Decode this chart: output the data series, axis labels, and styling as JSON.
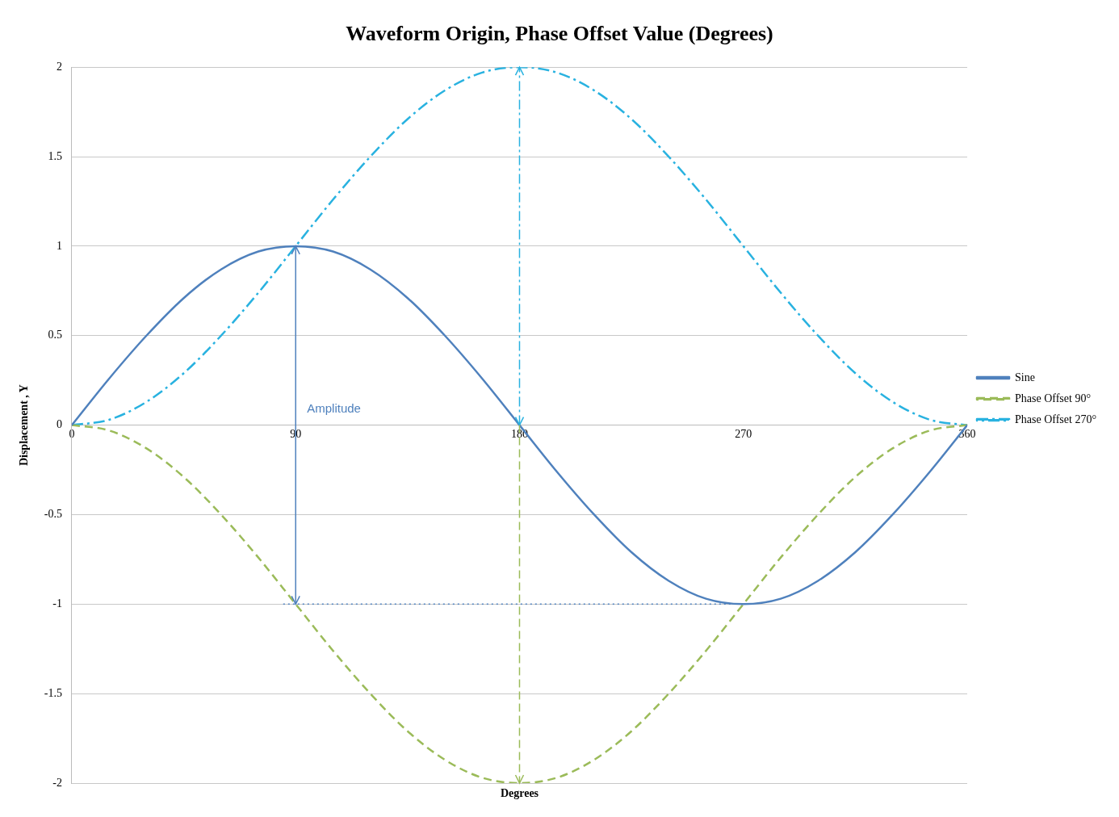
{
  "chart_data": {
    "type": "line",
    "title": "Waveform Origin, Phase Offset Value (Degrees)",
    "xlabel": "Degrees",
    "ylabel": "Displacement , Y",
    "x": [
      0,
      15,
      30,
      45,
      60,
      75,
      90,
      105,
      120,
      135,
      150,
      165,
      180,
      195,
      210,
      225,
      240,
      255,
      270,
      285,
      300,
      315,
      330,
      345,
      360
    ],
    "series": [
      {
        "name": "Sine",
        "color": "#4f81bd",
        "line_style": "solid",
        "values": [
          0,
          0.26,
          0.5,
          0.71,
          0.87,
          0.97,
          1,
          0.97,
          0.87,
          0.71,
          0.5,
          0.26,
          0,
          -0.26,
          -0.5,
          -0.71,
          -0.87,
          -0.97,
          -1,
          -0.97,
          -0.87,
          -0.71,
          -0.5,
          -0.26,
          0
        ]
      },
      {
        "name": "Phase Offset 90°",
        "color": "#9bbb59",
        "line_style": "dashed",
        "values": [
          0,
          -0.03,
          -0.13,
          -0.29,
          -0.5,
          -0.74,
          -1,
          -1.26,
          -1.5,
          -1.71,
          -1.87,
          -1.97,
          -2,
          -1.97,
          -1.87,
          -1.71,
          -1.5,
          -1.26,
          -1,
          -0.74,
          -0.5,
          -0.29,
          -0.13,
          -0.03,
          0
        ]
      },
      {
        "name": "Phase Offset 270°",
        "color": "#29b2e0",
        "line_style": "dashed",
        "values": [
          0,
          0.03,
          0.13,
          0.29,
          0.5,
          0.74,
          1,
          1.26,
          1.5,
          1.71,
          1.87,
          1.97,
          2,
          1.97,
          1.87,
          1.71,
          1.5,
          1.26,
          1,
          0.74,
          0.5,
          0.29,
          0.13,
          0.03,
          0
        ]
      },
      {
        "type": "line",
        "color": "#4f81bd",
        "line_style": "dotted",
        "x": [
          85,
          270
        ],
        "values": [
          -1,
          -1
        ]
      }
    ],
    "xlim": [
      0,
      360
    ],
    "xticks": [
      0,
      90,
      180,
      270,
      360
    ],
    "ylim": [
      -2,
      2
    ],
    "yticks": [
      -2,
      -1.5,
      -1,
      -0.5,
      0,
      0.5,
      1,
      1.5,
      2
    ],
    "grid": "y",
    "legend": "right",
    "marker": "none",
    "annotations": [
      "Amplitude"
    ]
  }
}
